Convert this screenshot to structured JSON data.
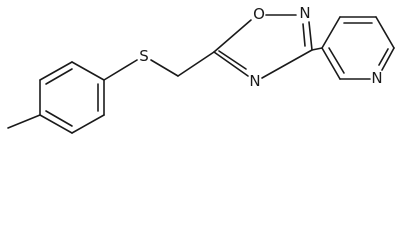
{
  "atoms": {
    "sulfur": "S",
    "oxygen": "O",
    "nitrogen_2": "N",
    "nitrogen_4": "N",
    "pyridine_nitrogen": "N"
  }
}
